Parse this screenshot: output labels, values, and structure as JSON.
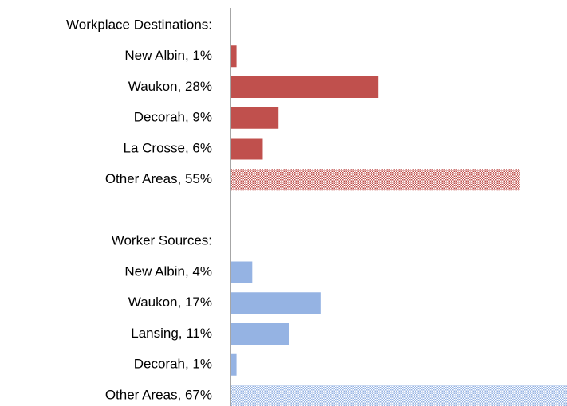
{
  "chart_data": {
    "type": "hbar",
    "categories": [
      "Workplace Destinations:",
      "New Albin, 1%",
      "Waukon, 28%",
      "Decorah, 9%",
      "La Crosse, 6%",
      "Other Areas, 55%",
      null,
      "Worker Sources:",
      "New Albin, 4%",
      "Waukon, 17%",
      "Lansing, 11%",
      "Decorah, 1%",
      "Other Areas, 67%"
    ],
    "values": [
      null,
      1,
      28,
      9,
      6,
      55,
      null,
      null,
      4,
      17,
      11,
      1,
      67
    ],
    "colors": [
      null,
      "#c0504d",
      "#c0504d",
      "#c0504d",
      "#c0504d",
      "#c0504d",
      null,
      null,
      "#95b3e3",
      "#95b3e3",
      "#95b3e3",
      "#95b3e3",
      "#95b3e3"
    ],
    "hatched": [
      false,
      false,
      false,
      false,
      false,
      true,
      false,
      false,
      false,
      false,
      false,
      false,
      true
    ],
    "xlim": [
      0,
      64
    ]
  }
}
